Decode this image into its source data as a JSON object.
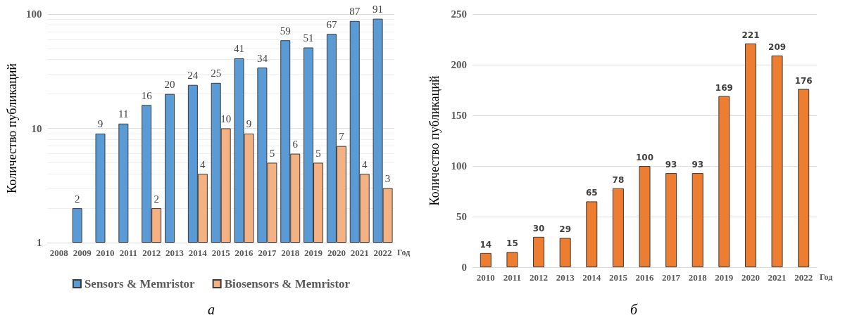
{
  "chart_data": [
    {
      "type": "bar",
      "ylabel": "Количество публикаций",
      "xlabel": "Год",
      "log": true,
      "grid": "y",
      "legend": "bottom",
      "data_labels": true,
      "ylim": [
        1,
        100
      ],
      "yticks": [
        1,
        10,
        100
      ],
      "annotations": [
        "а"
      ],
      "categories": [
        "2008",
        "2009",
        "2010",
        "2011",
        "2012",
        "2013",
        "2014",
        "2015",
        "2016",
        "2017",
        "2018",
        "2019",
        "2020",
        "2021",
        "2022"
      ],
      "series": [
        {
          "name": "Sensors & Memristor",
          "color": "#5b9bd5",
          "values": [
            null,
            2,
            9,
            11,
            16,
            20,
            24,
            25,
            41,
            34,
            59,
            51,
            67,
            87,
            91
          ]
        },
        {
          "name": "Biosensors & Memristor",
          "color": "#f4b183",
          "values": [
            null,
            null,
            null,
            null,
            2,
            null,
            4,
            10,
            9,
            5,
            6,
            5,
            7,
            4,
            3
          ]
        }
      ]
    },
    {
      "type": "bar",
      "ylabel": "Количество публикаций",
      "xlabel": "Год",
      "grid": "y",
      "data_labels": true,
      "ylim": [
        0,
        250
      ],
      "yticks": [
        0,
        50,
        100,
        150,
        200,
        250
      ],
      "annotations": [
        "б"
      ],
      "categories": [
        "2010",
        "2011",
        "2012",
        "2013",
        "2014",
        "2015",
        "2016",
        "2017",
        "2018",
        "2019",
        "2020",
        "2021",
        "2022"
      ],
      "series": [
        {
          "color": "#ed7d31",
          "values": [
            14,
            15,
            30,
            29,
            65,
            78,
            100,
            93,
            93,
            169,
            221,
            209,
            176
          ]
        }
      ]
    }
  ]
}
